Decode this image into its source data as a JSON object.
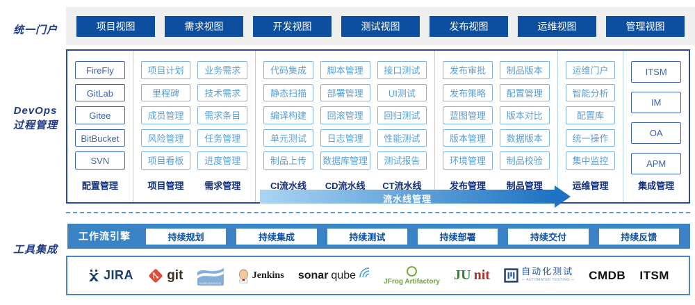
{
  "portal": {
    "label": "统一门户",
    "views": [
      "项目视图",
      "需求视图",
      "开发视图",
      "测试视图",
      "发布视图",
      "运维视图",
      "管理视图"
    ]
  },
  "process": {
    "label_line1": "DevOps",
    "label_line2": "过程管理",
    "pipeline_arrow_label": "流水线管理",
    "groups": [
      {
        "columns": [
          {
            "title": "配置管理",
            "style": "dark",
            "layout": "normal",
            "items": [
              "FireFly",
              "GitLab",
              "Gitee",
              "BitBucket",
              "SVN"
            ]
          }
        ]
      },
      {
        "columns": [
          {
            "title": "项目管理",
            "style": "light",
            "layout": "normal",
            "items": [
              "项目计划",
              "里程碑",
              "成员管理",
              "风险管理",
              "项目看板"
            ]
          },
          {
            "title": "需求管理",
            "style": "light",
            "layout": "normal",
            "items": [
              "业务需求",
              "技术需求",
              "需求条目",
              "任务管理",
              "进度管理"
            ]
          }
        ]
      },
      {
        "columns": [
          {
            "title": "CI流水线",
            "style": "light",
            "layout": "normal",
            "items": [
              "代码集成",
              "静态扫描",
              "编译构建",
              "单元测试",
              "制品上传"
            ]
          },
          {
            "title": "CD流水线",
            "style": "light",
            "layout": "normal",
            "items": [
              "脚本管理",
              "部署管理",
              "回滚管理",
              "日志管理",
              "数据库管理"
            ]
          },
          {
            "title": "CT流水线",
            "style": "light",
            "layout": "normal",
            "items": [
              "接口测试",
              "UI测试",
              "回归测试",
              "性能测试",
              "测试报告"
            ]
          }
        ]
      },
      {
        "columns": [
          {
            "title": "发布管理",
            "style": "light",
            "layout": "normal",
            "items": [
              "发布审批",
              "发布策略",
              "蓝图管理",
              "版本管理",
              "环境管理"
            ]
          },
          {
            "title": "制品管理",
            "style": "light",
            "layout": "normal",
            "items": [
              "制品版本",
              "配置管理",
              "版本对比",
              "数据版本",
              "制品校验"
            ]
          }
        ]
      },
      {
        "columns": [
          {
            "title": "运维管理",
            "style": "light",
            "layout": "normal",
            "items": [
              "运维门户",
              "智能分析",
              "配置库",
              "统一操作",
              "集中监控"
            ]
          }
        ]
      },
      {
        "columns": [
          {
            "title": "集成管理",
            "style": "dark",
            "layout": "tall",
            "items": [
              "ITSM",
              "IM",
              "OA",
              "APM"
            ]
          }
        ]
      }
    ]
  },
  "tools": {
    "label": "工具集成",
    "engine_label": "工作流引擎",
    "stages": [
      "持续规划",
      "持续集成",
      "持续测试",
      "持续部署",
      "持续交付",
      "持续反馈"
    ],
    "logos": [
      {
        "icon": "jira",
        "name": "JIRA"
      },
      {
        "icon": "git",
        "name": "git"
      },
      {
        "icon": "subversion",
        "name": "SUBVERSION"
      },
      {
        "icon": "jenkins",
        "name": "Jenkins"
      },
      {
        "icon": "sonarqube",
        "parts": [
          "sonar",
          "qube"
        ]
      },
      {
        "icon": "jfrog",
        "name": "JFrog Artifactory"
      },
      {
        "icon": "junit",
        "parts": [
          "JU",
          "nit"
        ]
      },
      {
        "icon": "autotest",
        "name": "自动化测试",
        "subtext": "— AUTOMATED TESTING —"
      },
      {
        "icon": "cmdb",
        "name": "CMDB"
      },
      {
        "icon": "itsm",
        "name": "ITSM"
      }
    ]
  },
  "colors": {
    "portal_button_blue": "#0d4f9e",
    "side_label_navy": "#1e3a87",
    "panel_border_navy": "#2b4c9c",
    "light_box_border": "#7db4e4",
    "light_box_text": "#5a9fd6",
    "dark_box_blue": "#3c64ae",
    "column_title_navy": "#12307c",
    "workflow_bar_blue": "#3a83c4",
    "arrow_gradient_start": "#abd5f3",
    "arrow_gradient_end": "#1d72c2",
    "band_gray": "#efefef"
  }
}
